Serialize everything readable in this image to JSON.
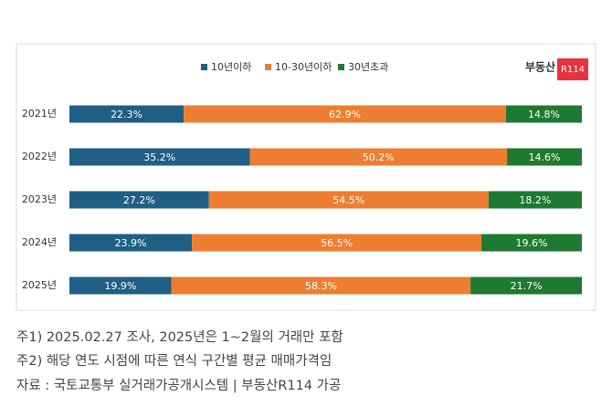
{
  "chart_data": {
    "type": "stacked-bar-horizontal",
    "logo": {
      "text": "부동산",
      "badge": "R114"
    },
    "categories": [
      "2021년",
      "2022년",
      "2023년",
      "2024년",
      "2025년"
    ],
    "series": [
      {
        "name": "10년이하",
        "color": "#1f5f86",
        "values": [
          22.3,
          35.2,
          27.2,
          23.9,
          19.9
        ],
        "value_labels": [
          "22.3%",
          "35.2%",
          "27.2%",
          "23.9%",
          "19.9%"
        ]
      },
      {
        "name": "10-30년이하",
        "color": "#ed7d31",
        "values": [
          62.9,
          50.2,
          54.5,
          56.5,
          58.3
        ],
        "value_labels": [
          "62.9%",
          "50.2%",
          "54.5%",
          "56.5%",
          "58.3%"
        ]
      },
      {
        "name": "30년초과",
        "color": "#1e7a32",
        "values": [
          14.8,
          14.6,
          18.2,
          19.6,
          21.7
        ],
        "value_labels": [
          "14.8%",
          "14.6%",
          "18.2%",
          "19.6%",
          "21.7%"
        ]
      }
    ]
  },
  "notes": [
    "주1) 2025.02.27 조사, 2025년은 1~2월의 거래만 포함",
    "주2) 해당 연도 시점에 따른 연식 구간별 평균 매매가격임",
    "자료 : 국토교통부 실거래가공개시스템 | 부동산R114 가공"
  ]
}
